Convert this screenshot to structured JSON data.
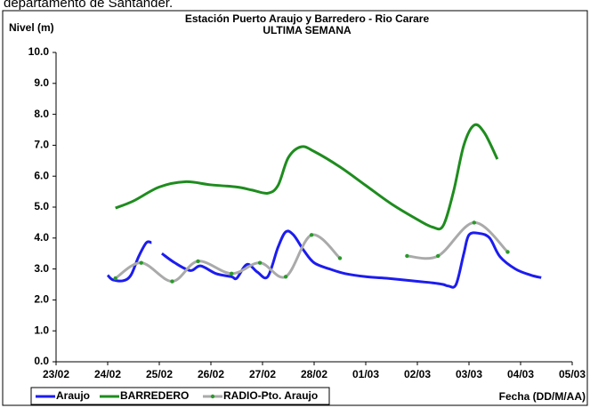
{
  "header": "departamento de Santander.",
  "chart_data": {
    "type": "line",
    "title": "Estación Puerto Araujo y Barredero - Rio Carare",
    "subtitle": "ULTIMA SEMANA",
    "y_label": "Nivel (m)",
    "x_label": "Fecha (DD/M/AA)",
    "xlim": [
      0,
      10
    ],
    "ylim": [
      0,
      10
    ],
    "xticks": [
      {
        "value": 0,
        "label": "23/02"
      },
      {
        "value": 1,
        "label": "24/02"
      },
      {
        "value": 2,
        "label": "25/02"
      },
      {
        "value": 3,
        "label": "26/02"
      },
      {
        "value": 4,
        "label": "27/02"
      },
      {
        "value": 5,
        "label": "28/02"
      },
      {
        "value": 6,
        "label": "01/03"
      },
      {
        "value": 7,
        "label": "02/03"
      },
      {
        "value": 8,
        "label": "03/03"
      },
      {
        "value": 9,
        "label": "04/03"
      },
      {
        "value": 10,
        "label": "05/03"
      }
    ],
    "yticks": [
      {
        "value": 0,
        "label": "0.0"
      },
      {
        "value": 1,
        "label": "1.0"
      },
      {
        "value": 2,
        "label": "2.0"
      },
      {
        "value": 3,
        "label": "3.0"
      },
      {
        "value": 4,
        "label": "4.0"
      },
      {
        "value": 5,
        "label": "5.0"
      },
      {
        "value": 6,
        "label": "6.0"
      },
      {
        "value": 7,
        "label": "7.0"
      },
      {
        "value": 8,
        "label": "8.0"
      },
      {
        "value": 9,
        "label": "9.0"
      },
      {
        "value": 10,
        "label": "10.0"
      }
    ],
    "legend": "bottom",
    "series": [
      {
        "name": "Araujo",
        "color": "#1c1cf0",
        "x": [
          1.0,
          1.1,
          1.3,
          1.45,
          1.6,
          1.75,
          1.85,
          1.95,
          2.05,
          2.3,
          2.6,
          2.8,
          3.1,
          3.4,
          3.5,
          3.7,
          3.9,
          4.1,
          4.3,
          4.45,
          4.6,
          4.8,
          5.0,
          5.3,
          5.6,
          6.0,
          6.4,
          7.0,
          7.3,
          7.5,
          7.6,
          7.75,
          7.9,
          8.0,
          8.2,
          8.4,
          8.6,
          8.9,
          9.2,
          9.4
        ],
        "values": [
          2.8,
          2.65,
          2.62,
          2.8,
          3.4,
          3.85,
          3.85,
          null,
          3.5,
          3.2,
          2.95,
          3.1,
          2.85,
          2.75,
          2.7,
          3.15,
          2.9,
          2.75,
          3.7,
          4.2,
          4.1,
          3.6,
          3.2,
          3.0,
          2.85,
          2.75,
          2.7,
          2.6,
          2.55,
          2.5,
          2.45,
          2.5,
          3.5,
          4.1,
          4.15,
          4.0,
          3.4,
          3.0,
          2.8,
          2.72
        ]
      },
      {
        "name": "BARREDERO",
        "color": "#1e8c1e",
        "x": [
          1.15,
          1.5,
          2.0,
          2.5,
          3.0,
          3.5,
          3.8,
          4.1,
          4.3,
          4.5,
          4.75,
          5.0,
          5.5,
          6.0,
          6.5,
          7.0,
          7.3,
          7.5,
          7.7,
          7.9,
          8.1,
          8.3,
          8.55
        ],
        "values": [
          4.97,
          5.2,
          5.65,
          5.82,
          5.72,
          5.65,
          5.55,
          5.45,
          5.7,
          6.6,
          6.95,
          6.8,
          6.3,
          5.7,
          5.1,
          4.6,
          4.35,
          4.4,
          5.5,
          7.0,
          7.65,
          7.4,
          6.55
        ]
      },
      {
        "name": "RADIO-Pto. Araujo",
        "color": "#aaaaaa",
        "marker_color": "#2a9a2a",
        "x": [
          1.15,
          1.65,
          2.25,
          2.75,
          3.4,
          3.95,
          4.45,
          4.95,
          5.5,
          6.1,
          6.8,
          7.4,
          8.1,
          8.75
        ],
        "values": [
          2.7,
          3.2,
          2.6,
          3.25,
          2.85,
          3.2,
          2.75,
          4.1,
          3.35,
          null,
          3.42,
          3.42,
          4.5,
          3.55
        ]
      }
    ]
  }
}
